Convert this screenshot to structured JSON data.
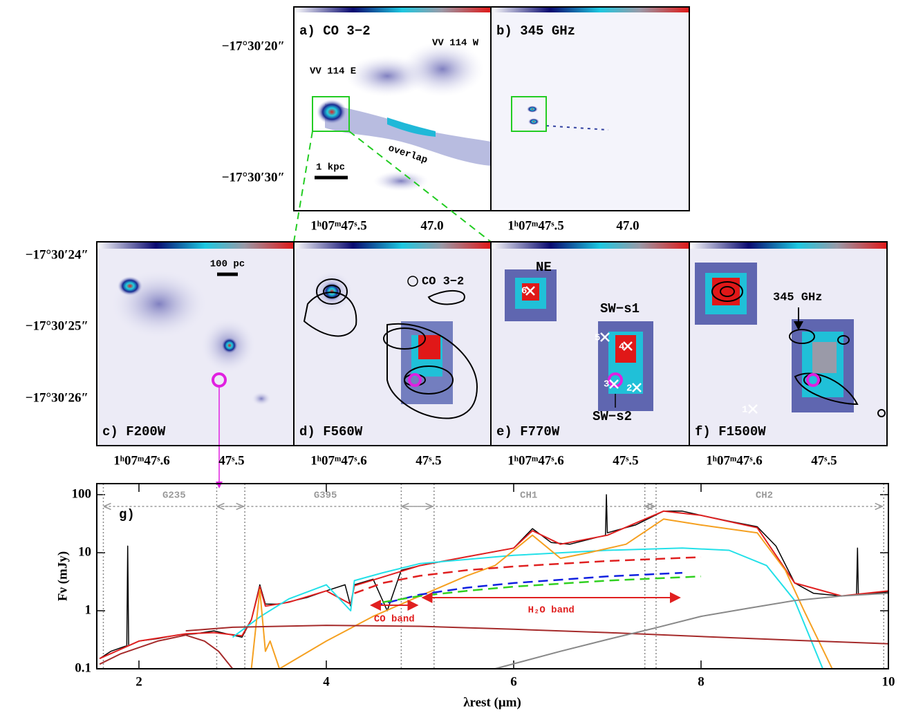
{
  "figure": {
    "dec_top": [
      "−17°30′20″",
      "−17°30′30″"
    ],
    "dec_mid": [
      "−17°30′24″",
      "−17°30′25″",
      "−17°30′26″"
    ],
    "panels": [
      {
        "label": "a) CO 3−2",
        "ra": [
          "1ʰ07ᵐ47ˢ.5",
          "47.0"
        ],
        "notes": [
          "VV 114 W",
          "VV 114 E",
          "overlap",
          "1 kpc"
        ]
      },
      {
        "label": "b) 345 GHz",
        "ra": [
          "1ʰ07ᵐ47ˢ.5",
          "47.0"
        ]
      },
      {
        "label": "c) F200W",
        "ra": [
          "1ʰ07ᵐ47ˢ.6",
          "47ˢ.5"
        ],
        "notes": [
          "100 pc"
        ]
      },
      {
        "label": "d) F560W",
        "ra": [
          "1ʰ07ᵐ47ˢ.6",
          "47ˢ.5"
        ],
        "notes": [
          "CO 3−2"
        ]
      },
      {
        "label": "e) F770W",
        "ra": [
          "1ʰ07ᵐ47ˢ.6",
          "47ˢ.5"
        ],
        "notes": [
          "NE",
          "SW−s1",
          "SW−s2"
        ],
        "markers": [
          "6",
          "5",
          "4",
          "3",
          "2"
        ]
      },
      {
        "label": "f) F1500W",
        "ra": [
          "1ʰ07ᵐ47ˢ.6",
          "47ˢ.5"
        ],
        "notes": [
          "345 GHz"
        ],
        "markers": [
          "1"
        ]
      }
    ]
  },
  "chart_data": {
    "type": "line",
    "panel_label": "g)",
    "xlabel": "λrest (μm)",
    "ylabel": "Fν (mJy)",
    "xlim": [
      1.55,
      10
    ],
    "ylim": [
      0.1,
      155
    ],
    "xticks": [
      2,
      4,
      6,
      8,
      10
    ],
    "yticks": [
      0.1,
      1,
      10,
      100
    ],
    "yscale": "log",
    "coverage": [
      {
        "label": "G235",
        "range": [
          1.62,
          3.13
        ]
      },
      {
        "label": "G395",
        "range": [
          2.83,
          5.15
        ]
      },
      {
        "label": "CH1",
        "range": [
          4.8,
          7.52
        ]
      },
      {
        "label": "CH2",
        "range": [
          7.4,
          9.95
        ]
      }
    ],
    "bands": [
      {
        "label": "CO band",
        "range": [
          4.45,
          5.0
        ]
      },
      {
        "label": "H₂O band",
        "range": [
          5.0,
          7.8
        ]
      }
    ],
    "series": [
      {
        "color": "#000000",
        "width": 1.5,
        "x": [
          1.58,
          1.7,
          1.87,
          1.88,
          1.89,
          2.0,
          2.2,
          2.4,
          2.6,
          2.8,
          3.0,
          3.1,
          3.2,
          3.29,
          3.35,
          3.5,
          3.8,
          4.0,
          4.2,
          4.26,
          4.3,
          4.5,
          4.65,
          4.8,
          5.0,
          5.5,
          6.0,
          6.2,
          6.4,
          6.6,
          6.98,
          6.99,
          7.0,
          7.3,
          7.6,
          7.8,
          8.0,
          8.3,
          8.6,
          8.8,
          9.0,
          9.2,
          9.5,
          9.66,
          9.67,
          9.68,
          10.0
        ],
        "values": [
          0.15,
          0.2,
          0.25,
          13,
          0.25,
          0.3,
          0.33,
          0.38,
          0.4,
          0.45,
          0.38,
          0.35,
          0.7,
          2.8,
          1.3,
          1.3,
          1.7,
          2.2,
          2.8,
          1.2,
          2.8,
          3.5,
          1.0,
          5,
          6,
          8.5,
          12,
          26,
          15,
          14,
          20,
          100,
          22,
          30,
          52,
          52,
          44,
          35,
          28,
          13,
          3,
          2,
          1.8,
          1.9,
          12,
          1.9,
          2.1
        ]
      },
      {
        "color": "#e02020",
        "width": 2,
        "x": [
          1.58,
          2.0,
          2.5,
          2.8,
          3.1,
          3.2,
          3.29,
          3.35,
          3.6,
          4.0,
          4.26,
          4.3,
          4.6,
          5.0,
          5.5,
          6.0,
          6.2,
          6.5,
          7.0,
          7.6,
          8.0,
          8.6,
          9.0,
          9.5,
          10.0
        ],
        "values": [
          0.15,
          0.3,
          0.4,
          0.42,
          0.37,
          0.7,
          2.6,
          1.2,
          1.4,
          2.2,
          1.3,
          2.7,
          3.8,
          6,
          8.5,
          12,
          24,
          14,
          20,
          52,
          44,
          27,
          3,
          1.8,
          2.2
        ]
      },
      {
        "color": "#22e0e8",
        "width": 2,
        "x": [
          3.0,
          3.3,
          3.6,
          4.0,
          4.26,
          4.3,
          4.6,
          5.0,
          6.0,
          7.0,
          7.8,
          8.3,
          8.7,
          9.0,
          9.3
        ],
        "values": [
          0.35,
          0.8,
          1.6,
          2.8,
          1.0,
          3.3,
          4.5,
          6.5,
          9,
          11,
          12,
          11,
          6,
          1.5,
          0.1
        ]
      },
      {
        "color": "#f5a020",
        "width": 2,
        "x": [
          3.2,
          3.29,
          3.35,
          3.4,
          3.5,
          4.0,
          4.5,
          5.0,
          5.5,
          5.8,
          6.2,
          6.5,
          6.8,
          7.2,
          7.6,
          8.0,
          8.6,
          8.9,
          9.1,
          9.4
        ],
        "values": [
          0.1,
          2.3,
          0.2,
          0.3,
          0.1,
          0.3,
          0.8,
          1.8,
          4,
          6,
          20,
          8,
          10,
          14,
          38,
          30,
          22,
          5,
          1,
          0.1
        ]
      },
      {
        "color": "#a52a2a",
        "width": 2,
        "x": [
          1.58,
          1.8,
          2.2,
          2.5,
          2.7,
          2.85,
          3.0
        ],
        "values": [
          0.12,
          0.18,
          0.3,
          0.38,
          0.3,
          0.2,
          0.1
        ]
      },
      {
        "color": "#a52a2a",
        "width": 2,
        "x": [
          2.5,
          3.0,
          4.0,
          5.0,
          6.0,
          7.0,
          8.0,
          9.0,
          10.0
        ],
        "values": [
          0.45,
          0.52,
          0.56,
          0.54,
          0.48,
          0.42,
          0.36,
          0.31,
          0.27
        ]
      },
      {
        "color": "#888888",
        "width": 2,
        "x": [
          5.8,
          6.5,
          7.0,
          7.5,
          8.0,
          8.5,
          9.0,
          9.5,
          10.0
        ],
        "values": [
          0.1,
          0.2,
          0.32,
          0.5,
          0.8,
          1.1,
          1.5,
          1.8,
          2.0
        ]
      },
      {
        "color": "#e02020",
        "width": 2.5,
        "dash": true,
        "x": [
          4.3,
          4.6,
          5.0,
          5.5,
          6.0,
          7.0,
          8.0
        ],
        "values": [
          2.0,
          3.0,
          4.0,
          5.0,
          5.8,
          7.2,
          8.4
        ]
      },
      {
        "color": "#1020e0",
        "width": 2.5,
        "dash": true,
        "x": [
          4.5,
          5.0,
          5.5,
          6.0,
          7.0,
          7.8
        ],
        "values": [
          1.2,
          1.9,
          2.5,
          3.0,
          3.9,
          4.5
        ]
      },
      {
        "color": "#30d020",
        "width": 2.5,
        "dash": true,
        "x": [
          4.6,
          5.0,
          5.5,
          6.0,
          7.0,
          8.0
        ],
        "values": [
          1.4,
          1.8,
          2.2,
          2.6,
          3.3,
          3.9
        ]
      }
    ]
  }
}
